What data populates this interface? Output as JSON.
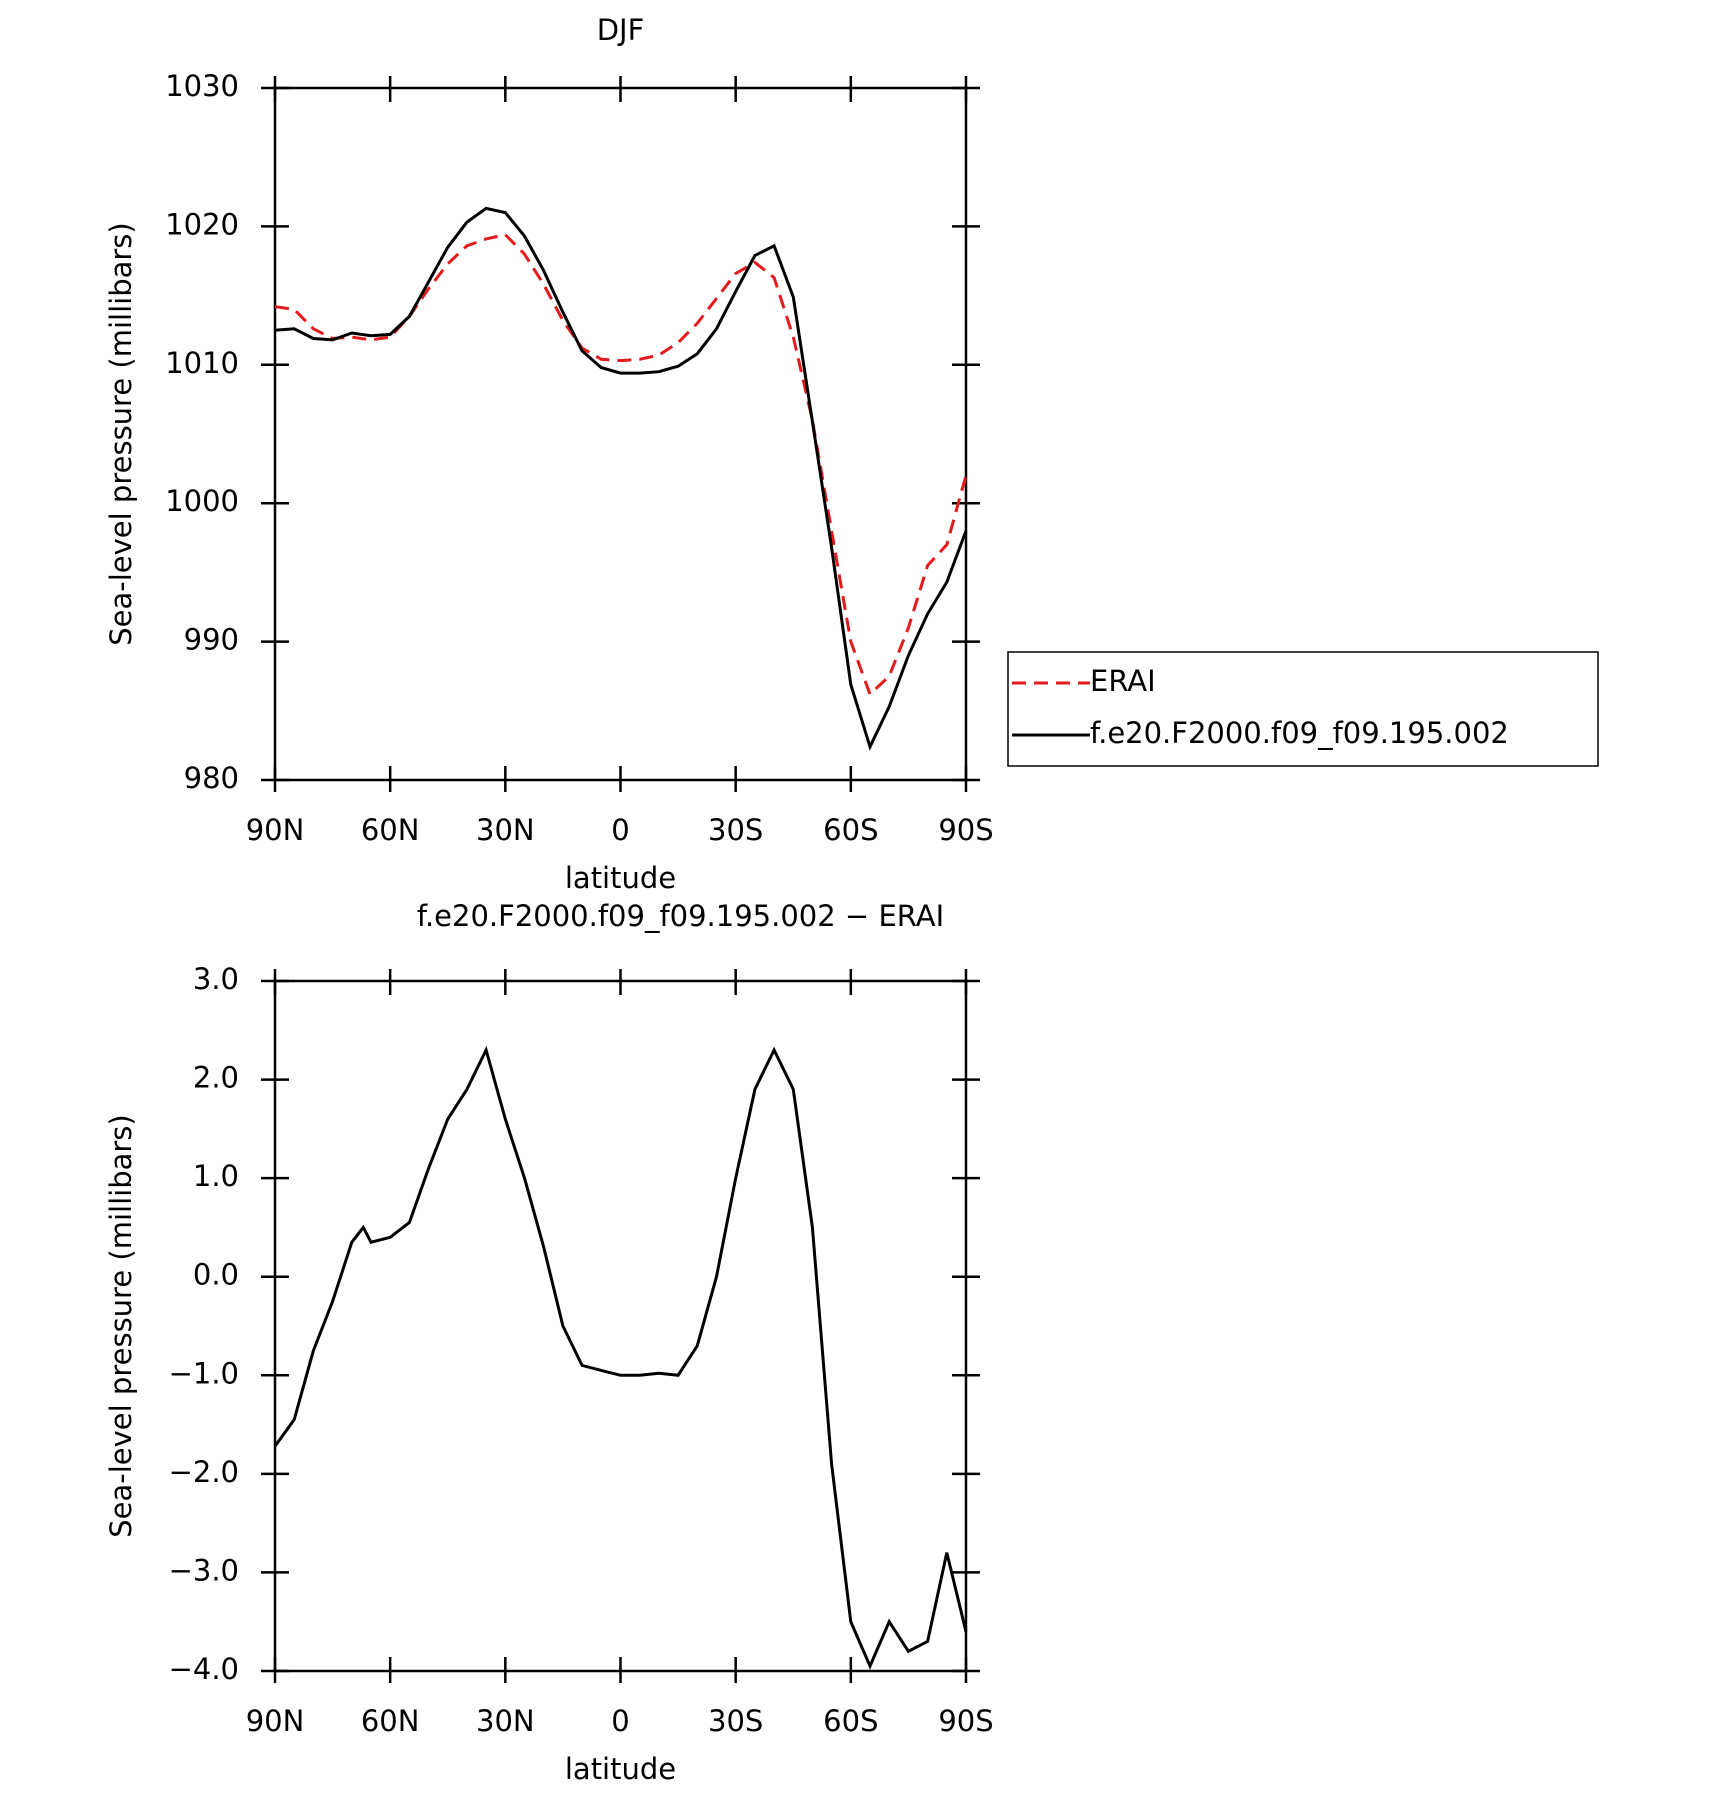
{
  "chart_data": [
    {
      "type": "line",
      "title": "DJF",
      "x_label": "latitude",
      "y_label": "Sea-level pressure (millibars)",
      "x": [
        90,
        85,
        80,
        75,
        70,
        65,
        60,
        55,
        50,
        45,
        40,
        35,
        30,
        25,
        20,
        15,
        10,
        5,
        0,
        -5,
        -10,
        -15,
        -20,
        -25,
        -30,
        -35,
        -40,
        -45,
        -50,
        -55,
        -60,
        -65,
        -70,
        -75,
        -80,
        -85,
        -90
      ],
      "xlim": [
        90,
        -90
      ],
      "xticks": [
        {
          "value": 90,
          "label": "90N"
        },
        {
          "value": 60,
          "label": "60N"
        },
        {
          "value": 30,
          "label": "30N"
        },
        0,
        {
          "value": -30,
          "label": "30S"
        },
        {
          "value": -60,
          "label": "60S"
        },
        {
          "value": -90,
          "label": "90S"
        }
      ],
      "ylim": [
        980,
        1030
      ],
      "yticks": [
        980,
        990,
        1000,
        1010,
        1020,
        1030
      ],
      "legend": "right",
      "series": [
        {
          "name": "ERAI",
          "color": "#e41a1c",
          "linestyle": "dashed",
          "values": [
            1014.2,
            1014.0,
            1012.6,
            1011.9,
            1012.0,
            1011.8,
            1012.0,
            1013.5,
            1015.5,
            1017.3,
            1018.6,
            1019.1,
            1019.4,
            1018.0,
            1015.8,
            1013.2,
            1011.2,
            1010.4,
            1010.3,
            1010.4,
            1010.7,
            1011.6,
            1013.0,
            1014.8,
            1016.6,
            1017.4,
            1016.3,
            1012.0,
            1006.0,
            998.0,
            990.0,
            986.2,
            987.5,
            991.0,
            995.5,
            997.0,
            1002.0
          ]
        },
        {
          "name": "f.e20.F2000.f09_f09.195.002",
          "color": "#000000",
          "linestyle": "solid",
          "values": [
            1012.5,
            1012.6,
            1011.9,
            1011.8,
            1012.3,
            1012.1,
            1012.2,
            1013.5,
            1016.0,
            1018.5,
            1020.3,
            1021.3,
            1021.0,
            1019.3,
            1016.8,
            1013.8,
            1011.0,
            1009.8,
            1009.4,
            1009.4,
            1009.5,
            1009.9,
            1010.8,
            1012.6,
            1015.3,
            1017.9,
            1018.6,
            1014.9,
            1005.9,
            996.8,
            986.9,
            982.4,
            985.3,
            989.0,
            992.0,
            994.3,
            998.0
          ]
        }
      ]
    },
    {
      "type": "line",
      "title": "f.e20.F2000.f09_f09.195.002 − ERAI",
      "x_label": "latitude",
      "y_label": "Sea-level pressure (millibars)",
      "x": [
        90,
        85,
        80,
        75,
        70,
        67,
        65,
        60,
        55,
        50,
        45,
        40,
        35,
        30,
        25,
        20,
        15,
        10,
        5,
        0,
        -5,
        -10,
        -15,
        -20,
        -25,
        -30,
        -35,
        -40,
        -45,
        -50,
        -55,
        -60,
        -65,
        -70,
        -75,
        -80,
        -85,
        -90
      ],
      "xlim": [
        90,
        -90
      ],
      "xticks": [
        {
          "value": 90,
          "label": "90N"
        },
        {
          "value": 60,
          "label": "60N"
        },
        {
          "value": 30,
          "label": "30N"
        },
        0,
        {
          "value": -30,
          "label": "30S"
        },
        {
          "value": -60,
          "label": "60S"
        },
        {
          "value": -90,
          "label": "90S"
        }
      ],
      "ylim": [
        -4,
        3
      ],
      "yticks": [
        {
          "value": -4,
          "label": "−4.0"
        },
        {
          "value": -3,
          "label": "−3.0"
        },
        {
          "value": -2,
          "label": "−2.0"
        },
        {
          "value": -1,
          "label": "−1.0"
        },
        {
          "value": 0,
          "label": "0.0"
        },
        {
          "value": 1,
          "label": "1.0"
        },
        {
          "value": 2,
          "label": "2.0"
        },
        {
          "value": 3,
          "label": "3.0"
        }
      ],
      "color": "#000000",
      "values": [
        -1.72,
        -1.45,
        -0.75,
        -0.25,
        0.35,
        0.5,
        0.35,
        0.4,
        0.55,
        1.1,
        1.6,
        1.9,
        2.3,
        1.6,
        1.0,
        0.3,
        -0.5,
        -0.9,
        -0.95,
        -1.0,
        -1.0,
        -0.98,
        -1.0,
        -0.7,
        0.0,
        1.0,
        1.9,
        2.3,
        1.9,
        0.5,
        -1.9,
        -3.5,
        -3.95,
        -3.5,
        -3.8,
        -3.7,
        -2.8,
        -3.6
      ]
    }
  ]
}
